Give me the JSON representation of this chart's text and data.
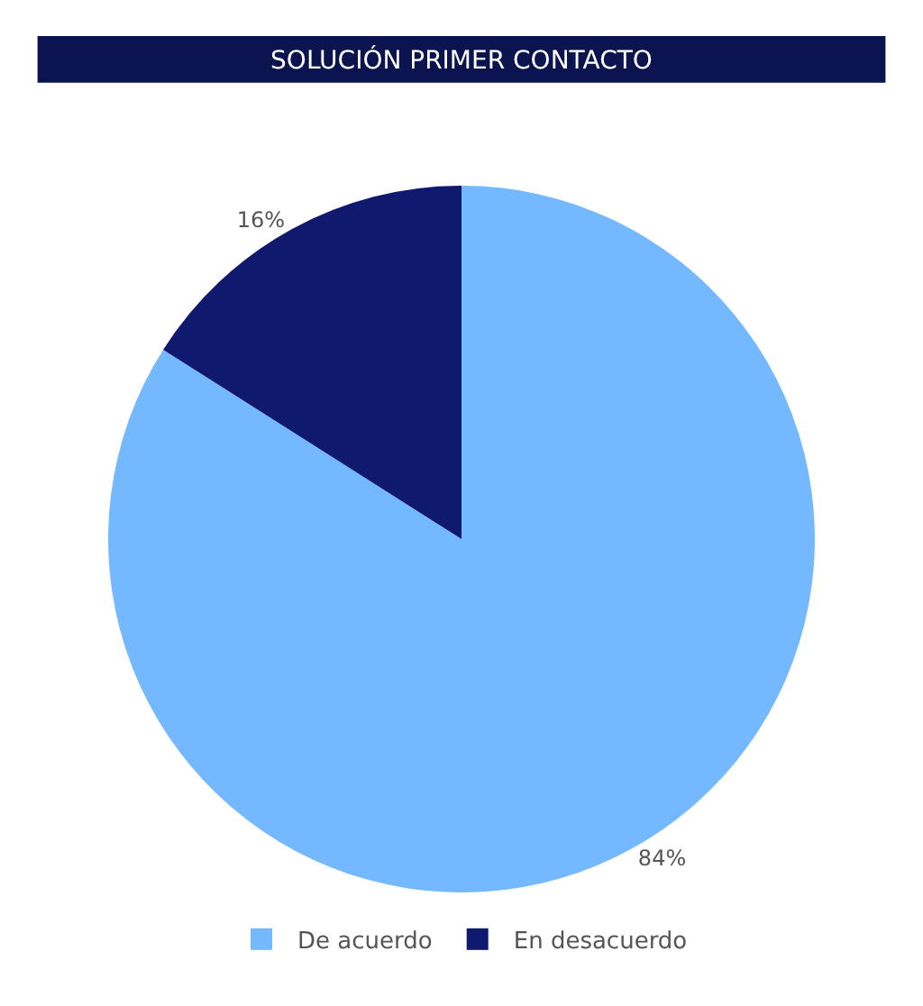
{
  "chart_data": {
    "type": "pie",
    "title": "SOLUCIÓN PRIMER CONTACTO",
    "categories": [
      "De acuerdo",
      "En desacuerdo"
    ],
    "values": [
      84,
      16
    ],
    "value_labels": [
      "84%",
      "16%"
    ],
    "colors": [
      "#74b9ff",
      "#0f1a6e"
    ],
    "legend": "bottom"
  }
}
